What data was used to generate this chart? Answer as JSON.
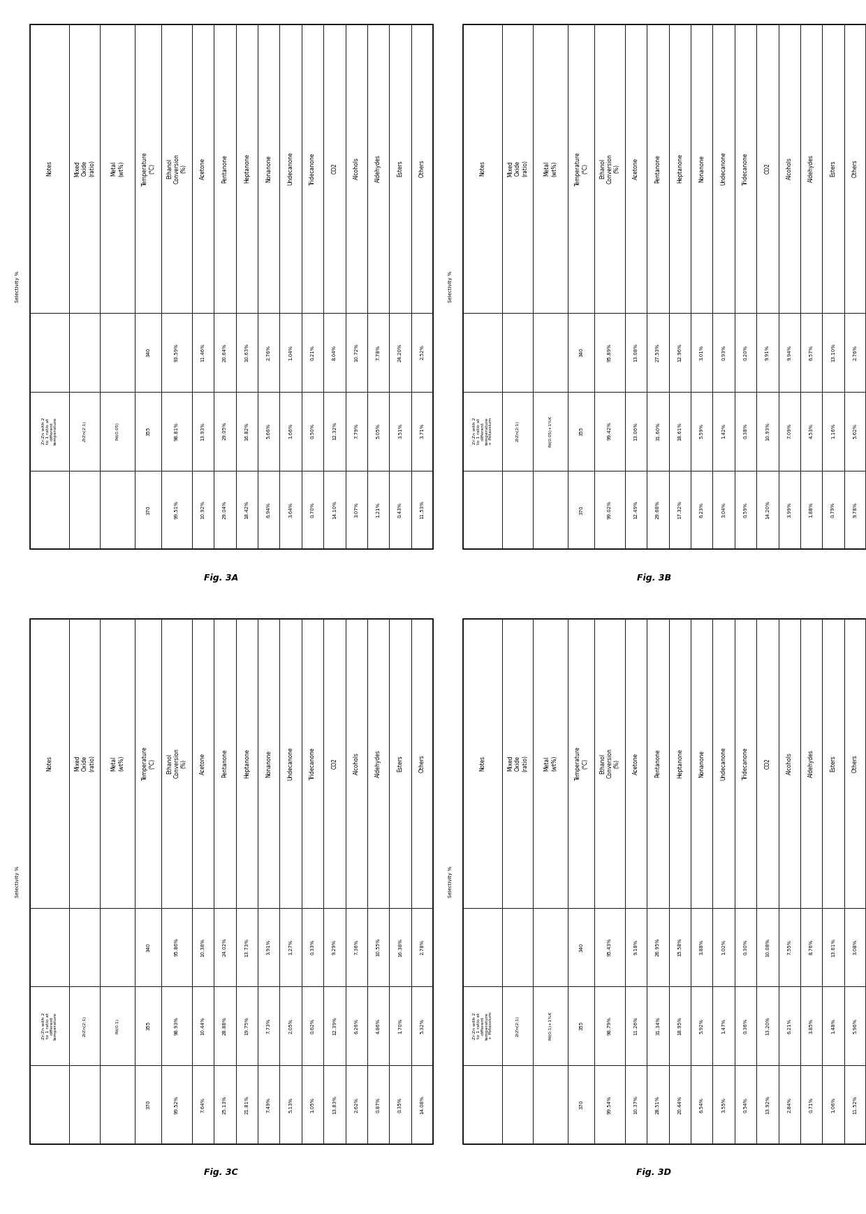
{
  "tables": [
    {
      "fig_label": "Fig. 3A",
      "notes_val": "Zr:Zn with 2\nto 1 ratio at\ndifferent\ntemperature",
      "mixed_oxide": "ZrZn(2:1)",
      "metal_wt": "Pd(0.05)",
      "temperature": [
        "340",
        "355",
        "370"
      ],
      "ethanol_conv": [
        "93.59%",
        "98.81%",
        "99.51%"
      ],
      "acetone": [
        "11.46%",
        "13.93%",
        "10.92%"
      ],
      "pentanone": [
        "20.64%",
        "29.05%",
        "29.04%"
      ],
      "heptanone": [
        "10.63%",
        "16.82%",
        "18.42%"
      ],
      "nonanone": [
        "2.76%",
        "5.66%",
        "6.94%"
      ],
      "undecanone": [
        "1.04%",
        "1.66%",
        "3.64%"
      ],
      "tridecanone": [
        "0.21%",
        "0.50%",
        "0.70%"
      ],
      "co2": [
        "8.04%",
        "12.32%",
        "14.10%"
      ],
      "alcohols": [
        "10.72%",
        "7.79%",
        "3.07%"
      ],
      "aldehydes": [
        "7.78%",
        "5.05%",
        "1.21%"
      ],
      "esters": [
        "24.20%",
        "3.51%",
        "0.43%"
      ],
      "others": [
        "2.52%",
        "3.71%",
        "11.53%"
      ]
    },
    {
      "fig_label": "Fig. 3B",
      "notes_val": "Zr:Zn with 2\nto 1 ratio at\ndifferent\ntemperature\n+ Potassium",
      "mixed_oxide": "ZrZn(2:1)",
      "metal_wt": "Pd(0.05)+1%K",
      "temperature": [
        "340",
        "355",
        "370"
      ],
      "ethanol_conv": [
        "95.89%",
        "99.42%",
        "99.02%"
      ],
      "acetone": [
        "13.08%",
        "13.06%",
        "12.49%"
      ],
      "pentanone": [
        "27.53%",
        "31.60%",
        "29.68%"
      ],
      "heptanone": [
        "12.96%",
        "18.61%",
        "17.32%"
      ],
      "nonanone": [
        "3.01%",
        "5.59%",
        "6.23%"
      ],
      "undecanone": [
        "0.93%",
        "1.42%",
        "3.04%"
      ],
      "tridecanone": [
        "0.20%",
        "0.38%",
        "0.59%"
      ],
      "co2": [
        "9.91%",
        "10.93%",
        "14.20%"
      ],
      "alcohols": [
        "9.94%",
        "7.09%",
        "3.99%"
      ],
      "aldehydes": [
        "6.57%",
        "4.53%",
        "1.88%"
      ],
      "esters": [
        "13.10%",
        "1.16%",
        "0.79%"
      ],
      "others": [
        "2.76%",
        "5.62%",
        "9.78%"
      ]
    },
    {
      "fig_label": "Fig. 3C",
      "notes_val": "Zr:Zn with 2\nto 1 ratio at\ndifferent\ntemperature",
      "mixed_oxide": "ZrZn(2:1)",
      "metal_wt": "Pd(0.1)",
      "temperature": [
        "340",
        "355",
        "370"
      ],
      "ethanol_conv": [
        "95.86%",
        "98.93%",
        "99.52%"
      ],
      "acetone": [
        "10.38%",
        "10.44%",
        "7.64%"
      ],
      "pentanone": [
        "24.02%",
        "28.88%",
        "25.13%"
      ],
      "heptanone": [
        "13.73%",
        "19.75%",
        "21.81%"
      ],
      "nonanone": [
        "3.91%",
        "7.73%",
        "7.49%"
      ],
      "undecanone": [
        "1.27%",
        "2.05%",
        "5.13%"
      ],
      "tridecanone": [
        "0.33%",
        "0.62%",
        "1.05%"
      ],
      "co2": [
        "9.29%",
        "12.39%",
        "13.83%"
      ],
      "alcohols": [
        "7.36%",
        "6.26%",
        "2.62%"
      ],
      "aldehydes": [
        "10.55%",
        "4.86%",
        "0.87%"
      ],
      "esters": [
        "16.38%",
        "1.70%",
        "0.35%"
      ],
      "others": [
        "2.78%",
        "5.32%",
        "14.08%"
      ]
    },
    {
      "fig_label": "Fig. 3D",
      "notes_val": "Zr:Zn with 2\nto 1 ratio at\ndifferent\ntemperature\n+ Potassium",
      "mixed_oxide": "ZrZn(2:1)",
      "metal_wt": "Pd(0.1)+1%K",
      "temperature": [
        "340",
        "355",
        "370"
      ],
      "ethanol_conv": [
        "95.43%",
        "98.79%",
        "99.54%"
      ],
      "acetone": [
        "9.18%",
        "11.26%",
        "10.37%"
      ],
      "pentanone": [
        "26.95%",
        "31.34%",
        "28.51%"
      ],
      "heptanone": [
        "15.58%",
        "18.95%",
        "20.44%"
      ],
      "nonanone": [
        "3.88%",
        "5.92%",
        "6.54%"
      ],
      "undecanone": [
        "1.02%",
        "1.47%",
        "3.55%"
      ],
      "tridecanone": [
        "0.30%",
        "0.36%",
        "0.54%"
      ],
      "co2": [
        "10.08%",
        "13.20%",
        "13.92%"
      ],
      "alcohols": [
        "7.55%",
        "6.21%",
        "2.84%"
      ],
      "aldehydes": [
        "8.76%",
        "3.85%",
        "0.71%"
      ],
      "esters": [
        "13.61%",
        "1.48%",
        "1.06%"
      ],
      "others": [
        "3.08%",
        "5.96%",
        "11.52%"
      ]
    }
  ],
  "background_color": "#ffffff"
}
